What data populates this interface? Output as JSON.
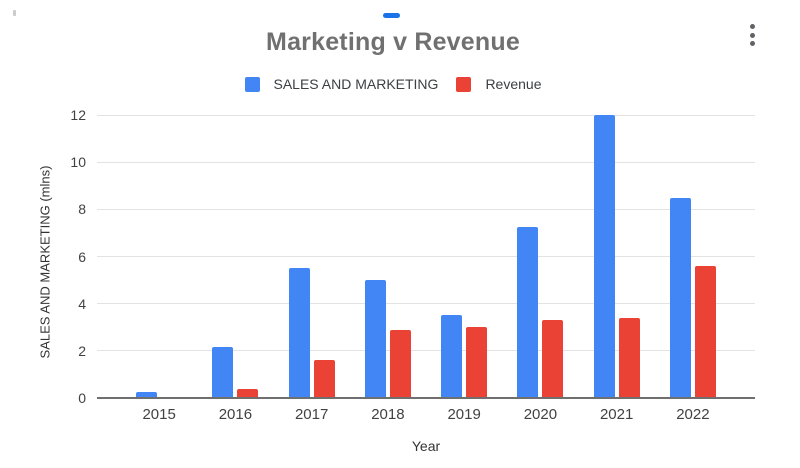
{
  "window": {
    "menu_icon": "kebab-menu",
    "selection_handle_color": "#1a73e8"
  },
  "chart_data": {
    "type": "bar",
    "title": "Marketing v Revenue",
    "categories": [
      "2015",
      "2016",
      "2017",
      "2018",
      "2019",
      "2020",
      "2021",
      "2022"
    ],
    "series": [
      {
        "name": "SALES AND MARKETING",
        "color": "#4285F4",
        "values": [
          0.25,
          2.15,
          5.5,
          5.0,
          3.5,
          7.25,
          12.0,
          8.5
        ]
      },
      {
        "name": "Revenue",
        "color": "#EA4335",
        "values": [
          0,
          0.4,
          1.6,
          2.9,
          3.0,
          3.3,
          3.4,
          5.6
        ]
      }
    ],
    "xlabel": "Year",
    "ylabel": "SALES AND MARKETING (mlns)",
    "ylim": [
      0,
      12
    ],
    "yticks": [
      0,
      2,
      4,
      6,
      8,
      10,
      12
    ],
    "grid": true,
    "legend_position": "top",
    "colors": {
      "title_text": "#707070",
      "axis_text": "#424242",
      "gridline": "#e3e3e3",
      "baseline": "#6f6f6f"
    }
  }
}
